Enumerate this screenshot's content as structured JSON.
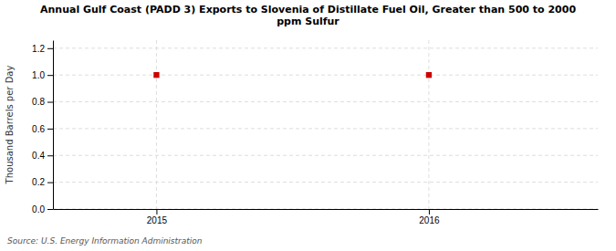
{
  "chart_data": {
    "type": "scatter",
    "title": "Annual Gulf Coast (PADD 3) Exports to Slovenia of Distillate Fuel Oil, Greater than 500 to 2000\nppm Sulfur",
    "y_label": "Thousand Barrels per Day",
    "source": "Source: U.S. Energy Information Administration",
    "x": [
      2015,
      2016
    ],
    "values": [
      1.0,
      1.0
    ],
    "color": "#cc0000",
    "marker": "square",
    "xlim": [
      2014.62,
      2016.62
    ],
    "xticks": [
      2015,
      2016
    ],
    "ylim": [
      0.0,
      1.26
    ],
    "yticks": [
      {
        "value": 0.0,
        "label": "0.0"
      },
      0.2,
      0.4,
      0.6,
      0.8,
      {
        "value": 1.0,
        "label": "1.0"
      },
      1.2
    ],
    "grid": true
  }
}
